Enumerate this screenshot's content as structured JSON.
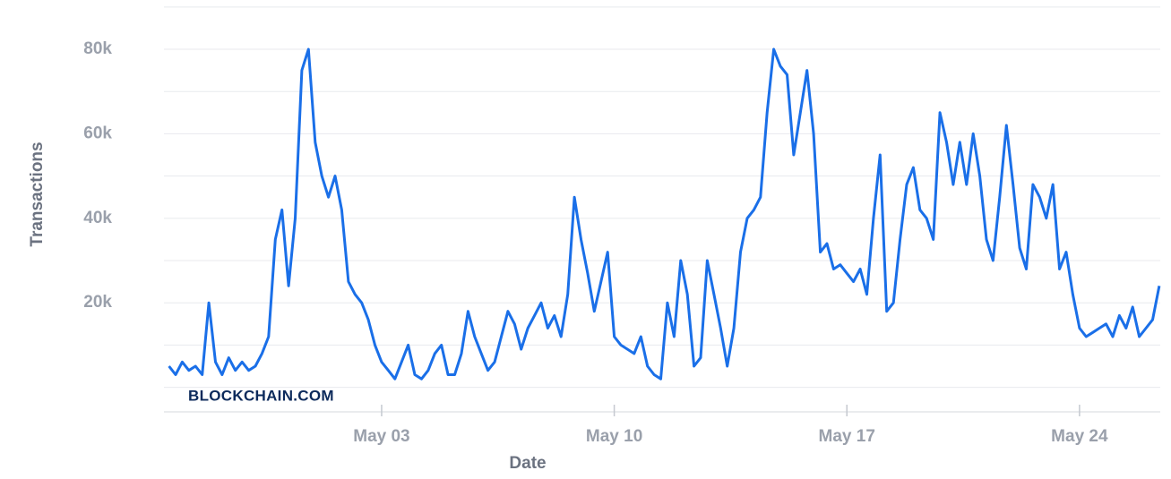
{
  "chart_data": {
    "type": "line",
    "x_label": "Date",
    "y_label": "Transactions",
    "watermark": "BLOCKCHAIN.COM",
    "color": "#1a6fe8",
    "x": [
      -3.4,
      -3.2,
      -3,
      -2.8,
      -2.6,
      -2.4,
      -2.2,
      -2,
      -1.8,
      -1.6,
      -1.4,
      -1.2,
      -1,
      -0.8,
      -0.6,
      -0.4,
      -0.2,
      0,
      0.2,
      0.4,
      0.6,
      0.8,
      1,
      1.2,
      1.4,
      1.6,
      1.8,
      2,
      2.2,
      2.4,
      2.6,
      2.8,
      3,
      3.2,
      3.4,
      3.6,
      3.8,
      4,
      4.2,
      4.4,
      4.6,
      4.8,
      5,
      5.2,
      5.4,
      5.6,
      5.8,
      6,
      6.2,
      6.4,
      6.6,
      6.8,
      7,
      7.2,
      7.4,
      7.6,
      7.8,
      8,
      8.2,
      8.4,
      8.6,
      8.8,
      9,
      9.2,
      9.4,
      9.6,
      9.8,
      10,
      10.2,
      10.4,
      10.6,
      10.8,
      11,
      11.2,
      11.4,
      11.6,
      11.8,
      12,
      12.2,
      12.4,
      12.6,
      12.8,
      13,
      13.2,
      13.4,
      13.6,
      13.8,
      14,
      14.2,
      14.4,
      14.6,
      14.8,
      15,
      15.2,
      15.4,
      15.6,
      15.8,
      16,
      16.2,
      16.4,
      16.6,
      16.8,
      17,
      17.2,
      17.4,
      17.6,
      17.8,
      18,
      18.2,
      18.4,
      18.6,
      18.8,
      19,
      19.2,
      19.4,
      19.6,
      19.8,
      20,
      20.2,
      20.4,
      20.6,
      20.8,
      21,
      21.2,
      21.4,
      21.6,
      21.8,
      22,
      22.2,
      22.4,
      22.6,
      22.8,
      23,
      23.2,
      23.4,
      23.6,
      23.8,
      24,
      24.2,
      24.4,
      24.6,
      24.8,
      25,
      25.2,
      25.4,
      25.6,
      25.8,
      26,
      26.2,
      26.4
    ],
    "values": [
      5000,
      3000,
      6000,
      4000,
      5000,
      3000,
      20000,
      6000,
      3000,
      7000,
      4000,
      6000,
      4000,
      5000,
      8000,
      12000,
      35000,
      42000,
      24000,
      40000,
      75000,
      80000,
      58000,
      50000,
      45000,
      50000,
      42000,
      25000,
      22000,
      20000,
      16000,
      10000,
      6000,
      4000,
      2000,
      6000,
      10000,
      3000,
      2000,
      4000,
      8000,
      10000,
      3000,
      3000,
      8000,
      18000,
      12000,
      8000,
      4000,
      6000,
      12000,
      18000,
      15000,
      9000,
      14000,
      17000,
      20000,
      14000,
      17000,
      12000,
      22000,
      45000,
      35000,
      27000,
      18000,
      25000,
      32000,
      12000,
      10000,
      9000,
      8000,
      12000,
      5000,
      3000,
      2000,
      20000,
      12000,
      30000,
      22000,
      5000,
      7000,
      30000,
      22000,
      14000,
      5000,
      14000,
      32000,
      40000,
      42000,
      45000,
      65000,
      80000,
      76000,
      74000,
      55000,
      65000,
      75000,
      60000,
      32000,
      34000,
      28000,
      29000,
      27000,
      25000,
      28000,
      22000,
      40000,
      55000,
      18000,
      20000,
      35000,
      48000,
      52000,
      42000,
      40000,
      35000,
      65000,
      58000,
      48000,
      58000,
      48000,
      60000,
      50000,
      35000,
      30000,
      45000,
      62000,
      48000,
      33000,
      28000,
      48000,
      45000,
      40000,
      48000,
      28000,
      32000,
      22000,
      14000,
      12000,
      13000,
      14000,
      15000,
      12000,
      17000,
      14000,
      19000,
      12000,
      14000,
      16000,
      24000
    ],
    "xlim": [
      -3.55,
      26.43
    ],
    "xticks": [
      {
        "value": 3,
        "label": "May 03"
      },
      {
        "value": 10,
        "label": "May 10"
      },
      {
        "value": 17,
        "label": "May 17"
      },
      {
        "value": 24,
        "label": "May 24"
      }
    ],
    "ylim": [
      -5800,
      90600
    ],
    "yticks": [
      {
        "value": 20000,
        "label": "20k"
      },
      {
        "value": 40000,
        "label": "40k"
      },
      {
        "value": 60000,
        "label": "60k"
      },
      {
        "value": 80000,
        "label": "80k"
      }
    ],
    "grid_lines": [
      0,
      10000,
      20000,
      30000,
      40000,
      50000,
      60000,
      70000,
      80000,
      90000
    ],
    "grid": true
  }
}
